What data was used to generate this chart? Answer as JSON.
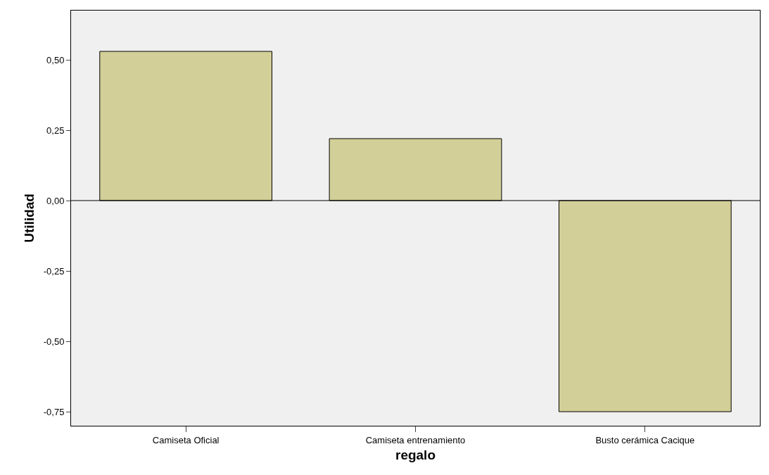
{
  "chart_data": {
    "type": "bar",
    "xlabel": "regalo",
    "ylabel": "Utilidad",
    "categories": [
      "Camiseta Oficial",
      "Camiseta entrenamiento",
      "Busto cerámica Cacique"
    ],
    "values": [
      0.53,
      0.22,
      -0.75
    ],
    "color": "#d3cf98",
    "ylim": [
      -0.8,
      0.675
    ],
    "yticks": [
      {
        "value": -0.75,
        "label": "-0,75"
      },
      {
        "value": -0.5,
        "label": "-0,50"
      },
      {
        "value": -0.25,
        "label": "-0,25"
      },
      {
        "value": 0,
        "label": "0,00"
      },
      {
        "value": 0.25,
        "label": "0,25"
      },
      {
        "value": 0.5,
        "label": "0,50"
      }
    ],
    "ref_lines": [
      {
        "axis": "y",
        "value": 0,
        "color": "#000000"
      }
    ],
    "grid": false,
    "legend": false
  }
}
